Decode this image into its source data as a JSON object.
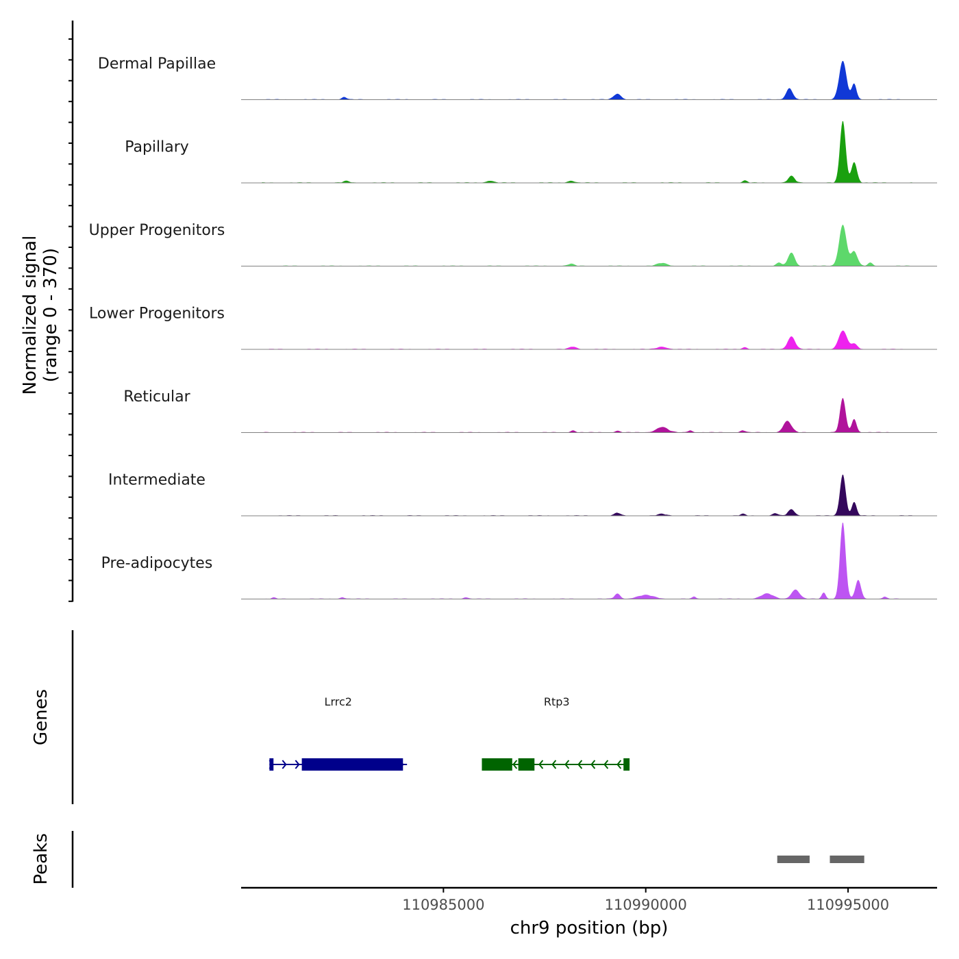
{
  "chart_data": {
    "type": "area",
    "title": "",
    "chromosome": "chr9",
    "xlabel": "chr9 position (bp)",
    "xlim": [
      110980000,
      110997200
    ],
    "xticks": [
      110985000,
      110990000,
      110995000
    ],
    "xtick_labels": [
      "110985000",
      "110990000",
      "110995000"
    ],
    "ylabel_line1": "Normalized signal",
    "ylabel_line2": "(range 0 - 370)",
    "ylim": [
      0,
      370
    ],
    "series": [
      {
        "name": "Dermal Papillae",
        "color": "#1038d6",
        "peaks": [
          [
            110982550,
            12,
            60
          ],
          [
            110989300,
            28,
            90
          ],
          [
            110993550,
            55,
            80
          ],
          [
            110994870,
            185,
            90
          ],
          [
            110995150,
            75,
            60
          ]
        ]
      },
      {
        "name": "Papillary",
        "color": "#1aa00f",
        "peaks": [
          [
            110982600,
            8,
            80
          ],
          [
            110986150,
            10,
            90
          ],
          [
            110988150,
            10,
            80
          ],
          [
            110992450,
            10,
            60
          ],
          [
            110993600,
            32,
            80
          ],
          [
            110994870,
            300,
            70
          ],
          [
            110995150,
            100,
            70
          ]
        ]
      },
      {
        "name": "Upper Progenitors",
        "color": "#5dd86b",
        "peaks": [
          [
            110988150,
            10,
            80
          ],
          [
            110990400,
            14,
            120
          ],
          [
            110993300,
            15,
            70
          ],
          [
            110993600,
            65,
            80
          ],
          [
            110994870,
            200,
            90
          ],
          [
            110995150,
            70,
            80
          ],
          [
            110995550,
            15,
            60
          ]
        ]
      },
      {
        "name": "Lower Progenitors",
        "color": "#ee22ee",
        "peaks": [
          [
            110988200,
            12,
            90
          ],
          [
            110990400,
            12,
            120
          ],
          [
            110992450,
            10,
            60
          ],
          [
            110993600,
            62,
            90
          ],
          [
            110994870,
            90,
            100
          ],
          [
            110995150,
            25,
            80
          ]
        ]
      },
      {
        "name": "Reticular",
        "color": "#b0139b",
        "peaks": [
          [
            110988200,
            10,
            60
          ],
          [
            110989300,
            8,
            60
          ],
          [
            110990400,
            26,
            140
          ],
          [
            110991100,
            10,
            60
          ],
          [
            110992400,
            10,
            60
          ],
          [
            110993500,
            55,
            100
          ],
          [
            110994870,
            165,
            70
          ],
          [
            110995150,
            65,
            60
          ]
        ]
      },
      {
        "name": "Intermediate",
        "color": "#34085c",
        "peaks": [
          [
            110989300,
            14,
            70
          ],
          [
            110990400,
            8,
            100
          ],
          [
            110992400,
            8,
            60
          ],
          [
            110993200,
            12,
            60
          ],
          [
            110993600,
            30,
            80
          ],
          [
            110994870,
            200,
            70
          ],
          [
            110995150,
            65,
            60
          ]
        ]
      },
      {
        "name": "Pre-adipocytes",
        "color": "#bd55f2",
        "peaks": [
          [
            110980800,
            6,
            50
          ],
          [
            110982500,
            8,
            60
          ],
          [
            110985550,
            8,
            60
          ],
          [
            110989300,
            25,
            70
          ],
          [
            110990000,
            18,
            200
          ],
          [
            110991200,
            10,
            50
          ],
          [
            110993000,
            25,
            150
          ],
          [
            110993700,
            45,
            100
          ],
          [
            110994400,
            30,
            50
          ],
          [
            110994870,
            370,
            70
          ],
          [
            110995250,
            90,
            70
          ],
          [
            110995900,
            10,
            50
          ]
        ]
      }
    ],
    "genes": [
      {
        "name": "Lrrc2",
        "color": "#00008b",
        "strand": "+",
        "start": 110980700,
        "end": 110984100,
        "exons": [
          [
            110980700,
            110980800
          ],
          [
            110981500,
            110984000
          ]
        ]
      },
      {
        "name": "Rtp3",
        "color": "#006400",
        "strand": "-",
        "start": 110986000,
        "end": 110989600,
        "exons": [
          [
            110985950,
            110986700
          ],
          [
            110986850,
            110987250
          ],
          [
            110989450,
            110989600
          ]
        ]
      }
    ],
    "peaks_track": [
      [
        110993250,
        110994050
      ],
      [
        110994550,
        110995400
      ]
    ],
    "track_titles": {
      "genes": "Genes",
      "peaks": "Peaks"
    },
    "colors": {
      "axis": "#000000",
      "baseline": "#808080",
      "peak_bar": "#666666",
      "tick_text": "#4d4d4d"
    }
  }
}
